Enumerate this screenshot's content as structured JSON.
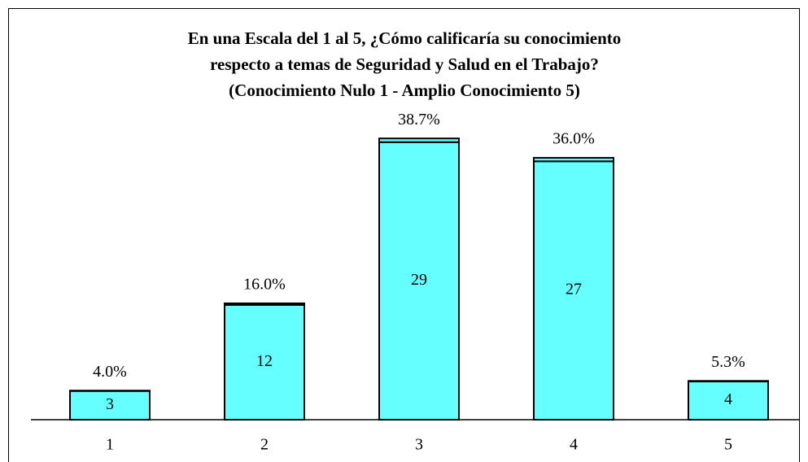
{
  "chart_data": {
    "type": "bar",
    "title": [
      "En una Escala del 1 al 5,  ¿Cómo calificaría su conocimiento",
      "respecto a temas de Seguridad y Salud en el Trabajo?",
      "(Conocimiento Nulo 1 - Amplio Conocimiento 5)"
    ],
    "categories": [
      "1",
      "2",
      "3",
      "4",
      "5"
    ],
    "series": [
      {
        "color": "#66ffff",
        "values": [
          3,
          12,
          29,
          27,
          4
        ]
      },
      {
        "color": "#66ffff",
        "values": [
          0.04,
          0.16,
          0.387,
          0.36,
          0.053
        ],
        "value_labels": [
          "4.0%",
          "16.0%",
          "38.7%",
          "36.0%",
          "5.3%"
        ]
      }
    ],
    "stacked": true,
    "ylim": [
      0,
      30
    ]
  }
}
